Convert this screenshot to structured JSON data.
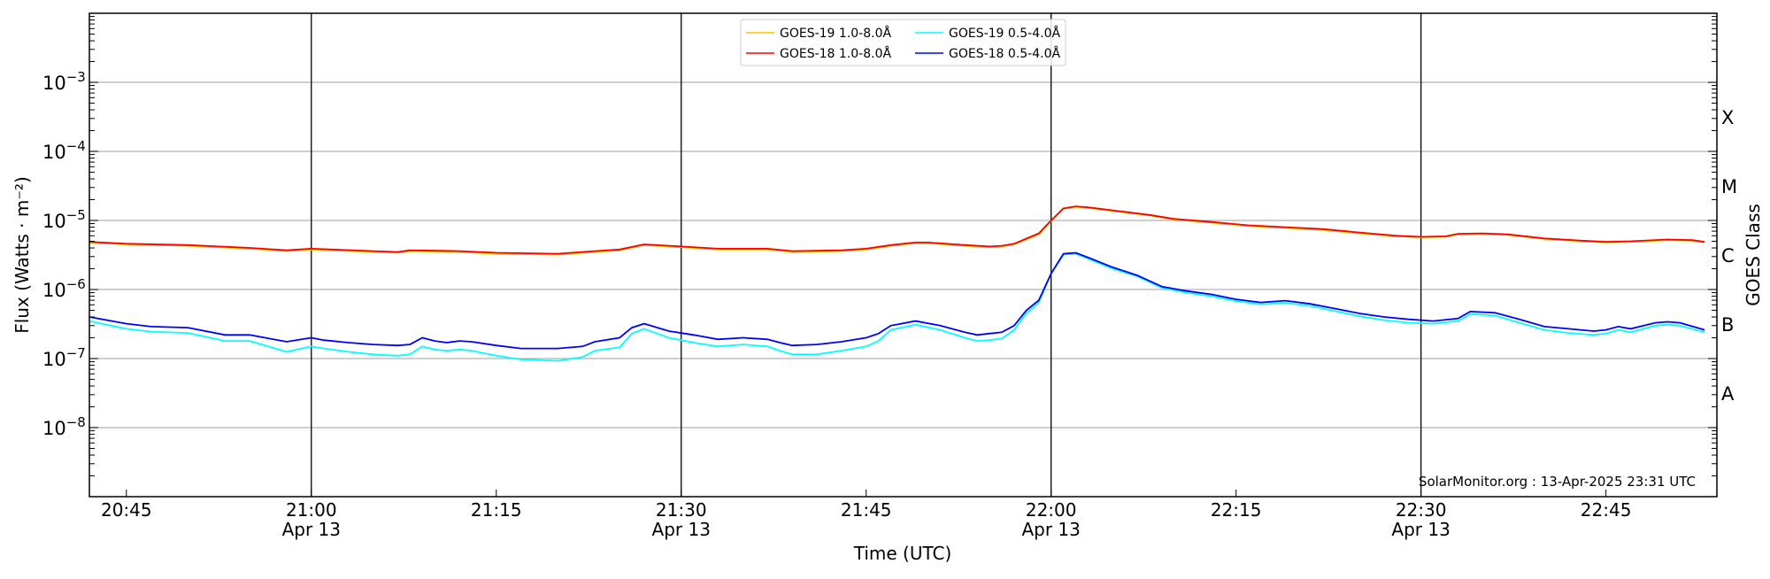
{
  "chart_data": {
    "type": "line",
    "xlabel": "Time (UTC)",
    "ylabel": "Flux (Watts · m⁻²)",
    "y2label": "GOES Class",
    "yscale": "log",
    "ylim": [
      1e-09,
      0.01
    ],
    "xlim": [
      "20:42",
      "22:54"
    ],
    "grid": "horizontal at decades",
    "legend_position": "top-center",
    "x_ticks": [
      {
        "t": "20:45",
        "label": "20:45",
        "sub": ""
      },
      {
        "t": "21:00",
        "label": "21:00",
        "sub": "Apr 13"
      },
      {
        "t": "21:15",
        "label": "21:15",
        "sub": ""
      },
      {
        "t": "21:30",
        "label": "21:30",
        "sub": "Apr 13"
      },
      {
        "t": "21:45",
        "label": "21:45",
        "sub": ""
      },
      {
        "t": "22:00",
        "label": "22:00",
        "sub": "Apr 13"
      },
      {
        "t": "22:15",
        "label": "22:15",
        "sub": ""
      },
      {
        "t": "22:30",
        "label": "22:30",
        "sub": "Apr 13"
      },
      {
        "t": "22:45",
        "label": "22:45",
        "sub": ""
      }
    ],
    "vertical_lines": [
      "21:00",
      "21:30",
      "22:00",
      "22:30"
    ],
    "y_ticks": [
      {
        "exp": -8,
        "label": "10",
        "sup": "−8"
      },
      {
        "exp": -7,
        "label": "10",
        "sup": "−7"
      },
      {
        "exp": -6,
        "label": "10",
        "sup": "−6"
      },
      {
        "exp": -5,
        "label": "10",
        "sup": "−5"
      },
      {
        "exp": -4,
        "label": "10",
        "sup": "−4"
      },
      {
        "exp": -3,
        "label": "10",
        "sup": "−3"
      }
    ],
    "goes_classes": [
      {
        "label": "A",
        "exp": -7.5
      },
      {
        "label": "B",
        "exp": -6.5
      },
      {
        "label": "C",
        "exp": -5.5
      },
      {
        "label": "M",
        "exp": -4.5
      },
      {
        "label": "X",
        "exp": -3.5
      }
    ],
    "annotation": "SolarMonitor.org : 13-Apr-2025 23:31 UTC",
    "series": [
      {
        "name": "GOES-19 1.0-8.0Å",
        "color": "#ffc000",
        "t": [
          "20:42",
          "20:45",
          "20:50",
          "20:55",
          "20:58",
          "21:00",
          "21:05",
          "21:07",
          "21:08",
          "21:12",
          "21:15",
          "21:20",
          "21:23",
          "21:25",
          "21:27",
          "21:30",
          "21:33",
          "21:37",
          "21:39",
          "21:43",
          "21:45",
          "21:47",
          "21:49",
          "21:50",
          "21:53",
          "21:55",
          "21:56",
          "21:57",
          "21:59",
          "22:00",
          "22:01",
          "22:02",
          "22:03",
          "22:05",
          "22:08",
          "22:10",
          "22:13",
          "22:16",
          "22:19",
          "22:22",
          "22:25",
          "22:28",
          "22:30",
          "22:32",
          "22:33",
          "22:35",
          "22:37",
          "22:40",
          "22:43",
          "22:45",
          "22:47",
          "22:50",
          "22:52",
          "22:53"
        ],
        "values": [
          4.8e-06,
          4.5e-06,
          4.3e-06,
          3.9e-06,
          3.6e-06,
          3.8e-06,
          3.5e-06,
          3.4e-06,
          3.6e-06,
          3.5e-06,
          3.3e-06,
          3.2e-06,
          3.5e-06,
          3.7e-06,
          4.4e-06,
          4.1e-06,
          3.8e-06,
          3.8e-06,
          3.5e-06,
          3.6e-06,
          3.8e-06,
          4.3e-06,
          4.7e-06,
          4.7e-06,
          4.3e-06,
          4.1e-06,
          4.2e-06,
          4.5e-06,
          6.3e-06,
          9.8e-06,
          1.47e-05,
          1.57e-05,
          1.52e-05,
          1.37e-05,
          1.18e-05,
          1.03e-05,
          9.3e-06,
          8.3e-06,
          7.8e-06,
          7.3e-06,
          6.5e-06,
          5.9e-06,
          5.7e-06,
          5.8e-06,
          6.3e-06,
          6.4e-06,
          6.2e-06,
          5.4e-06,
          5e-06,
          4.8e-06,
          4.9e-06,
          5.2e-06,
          5.1e-06,
          4.8e-06
        ]
      },
      {
        "name": "GOES-18 1.0-8.0Å",
        "color": "#ff0000",
        "t": [
          "20:42",
          "20:45",
          "20:50",
          "20:55",
          "20:58",
          "21:00",
          "21:05",
          "21:07",
          "21:08",
          "21:12",
          "21:15",
          "21:20",
          "21:23",
          "21:25",
          "21:27",
          "21:30",
          "21:33",
          "21:37",
          "21:39",
          "21:43",
          "21:45",
          "21:47",
          "21:49",
          "21:50",
          "21:53",
          "21:55",
          "21:56",
          "21:57",
          "21:59",
          "22:00",
          "22:01",
          "22:02",
          "22:03",
          "22:05",
          "22:08",
          "22:10",
          "22:13",
          "22:16",
          "22:19",
          "22:22",
          "22:25",
          "22:28",
          "22:30",
          "22:32",
          "22:33",
          "22:35",
          "22:37",
          "22:40",
          "22:43",
          "22:45",
          "22:47",
          "22:50",
          "22:52",
          "22:53"
        ],
        "values": [
          4.9e-06,
          4.6e-06,
          4.4e-06,
          4e-06,
          3.7e-06,
          3.9e-06,
          3.6e-06,
          3.5e-06,
          3.7e-06,
          3.6e-06,
          3.4e-06,
          3.3e-06,
          3.6e-06,
          3.8e-06,
          4.5e-06,
          4.2e-06,
          3.9e-06,
          3.9e-06,
          3.6e-06,
          3.7e-06,
          3.9e-06,
          4.4e-06,
          4.8e-06,
          4.8e-06,
          4.4e-06,
          4.2e-06,
          4.3e-06,
          4.6e-06,
          6.5e-06,
          1e-05,
          1.5e-05,
          1.6e-05,
          1.55e-05,
          1.4e-05,
          1.2e-05,
          1.05e-05,
          9.5e-06,
          8.5e-06,
          8e-06,
          7.5e-06,
          6.7e-06,
          6e-06,
          5.8e-06,
          5.9e-06,
          6.4e-06,
          6.5e-06,
          6.3e-06,
          5.5e-06,
          5.1e-06,
          4.9e-06,
          5e-06,
          5.3e-06,
          5.2e-06,
          4.9e-06
        ]
      },
      {
        "name": "GOES-19 0.5-4.0Å",
        "color": "#00ffff",
        "t": [
          "20:42",
          "20:45",
          "20:47",
          "20:50",
          "20:53",
          "20:55",
          "20:58",
          "21:00",
          "21:01",
          "21:03",
          "21:05",
          "21:07",
          "21:08",
          "21:09",
          "21:10",
          "21:11",
          "21:12",
          "21:13",
          "21:15",
          "21:17",
          "21:20",
          "21:22",
          "21:23",
          "21:25",
          "21:26",
          "21:27",
          "21:29",
          "21:31",
          "21:33",
          "21:35",
          "21:37",
          "21:38",
          "21:39",
          "21:41",
          "21:43",
          "21:45",
          "21:46",
          "21:47",
          "21:49",
          "21:51",
          "21:53",
          "21:54",
          "21:55",
          "21:56",
          "21:57",
          "21:58",
          "21:59",
          "22:00",
          "22:01",
          "22:02",
          "22:03",
          "22:05",
          "22:07",
          "22:09",
          "22:11",
          "22:13",
          "22:15",
          "22:17",
          "22:19",
          "22:21",
          "22:23",
          "22:25",
          "22:27",
          "22:29",
          "22:31",
          "22:33",
          "22:34",
          "22:36",
          "22:38",
          "22:40",
          "22:42",
          "22:44",
          "22:45",
          "22:46",
          "22:47",
          "22:49",
          "22:50",
          "22:51",
          "22:53"
        ],
        "values": [
          3.5e-07,
          2.7e-07,
          2.45e-07,
          2.35e-07,
          1.8e-07,
          1.8e-07,
          1.25e-07,
          1.5e-07,
          1.4e-07,
          1.25e-07,
          1.15e-07,
          1.1e-07,
          1.15e-07,
          1.5e-07,
          1.35e-07,
          1.3e-07,
          1.35e-07,
          1.3e-07,
          1.1e-07,
          9.7e-08,
          9.3e-08,
          1.05e-07,
          1.3e-07,
          1.45e-07,
          2.3e-07,
          2.7e-07,
          2e-07,
          1.7e-07,
          1.5e-07,
          1.6e-07,
          1.5e-07,
          1.3e-07,
          1.15e-07,
          1.15e-07,
          1.3e-07,
          1.5e-07,
          1.8e-07,
          2.6e-07,
          3.1e-07,
          2.6e-07,
          2e-07,
          1.8e-07,
          1.85e-07,
          1.95e-07,
          2.6e-07,
          4.5e-07,
          6.5e-07,
          1.7e-06,
          3.2e-06,
          3.3e-06,
          2.8e-06,
          2e-06,
          1.55e-06,
          1.05e-06,
          9e-07,
          8e-07,
          6.8e-07,
          6.1e-07,
          6.4e-07,
          5.8e-07,
          4.9e-07,
          4.1e-07,
          3.6e-07,
          3.3e-07,
          3.2e-07,
          3.5e-07,
          4.4e-07,
          4.2e-07,
          3.3e-07,
          2.6e-07,
          2.35e-07,
          2.2e-07,
          2.3e-07,
          2.6e-07,
          2.4e-07,
          3e-07,
          3.1e-07,
          3e-07,
          2.4e-07
        ]
      },
      {
        "name": "GOES-18 0.5-4.0Å",
        "color": "#0000ff",
        "t": [
          "20:42",
          "20:45",
          "20:47",
          "20:50",
          "20:53",
          "20:55",
          "20:58",
          "21:00",
          "21:01",
          "21:03",
          "21:05",
          "21:07",
          "21:08",
          "21:09",
          "21:10",
          "21:11",
          "21:12",
          "21:13",
          "21:15",
          "21:17",
          "21:20",
          "21:22",
          "21:23",
          "21:25",
          "21:26",
          "21:27",
          "21:29",
          "21:31",
          "21:33",
          "21:35",
          "21:37",
          "21:38",
          "21:39",
          "21:41",
          "21:43",
          "21:45",
          "21:46",
          "21:47",
          "21:49",
          "21:51",
          "21:53",
          "21:54",
          "21:55",
          "21:56",
          "21:57",
          "21:58",
          "21:59",
          "22:00",
          "22:01",
          "22:02",
          "22:03",
          "22:05",
          "22:07",
          "22:09",
          "22:11",
          "22:13",
          "22:15",
          "22:17",
          "22:19",
          "22:21",
          "22:23",
          "22:25",
          "22:27",
          "22:29",
          "22:31",
          "22:33",
          "22:34",
          "22:36",
          "22:38",
          "22:40",
          "22:42",
          "22:44",
          "22:45",
          "22:46",
          "22:47",
          "22:49",
          "22:50",
          "22:51",
          "22:53"
        ],
        "values": [
          4e-07,
          3.2e-07,
          2.9e-07,
          2.8e-07,
          2.2e-07,
          2.2e-07,
          1.75e-07,
          2e-07,
          1.85e-07,
          1.7e-07,
          1.6e-07,
          1.55e-07,
          1.6e-07,
          2e-07,
          1.8e-07,
          1.7e-07,
          1.8e-07,
          1.75e-07,
          1.55e-07,
          1.4e-07,
          1.4e-07,
          1.5e-07,
          1.75e-07,
          2e-07,
          2.8e-07,
          3.2e-07,
          2.5e-07,
          2.2e-07,
          1.9e-07,
          2e-07,
          1.9e-07,
          1.7e-07,
          1.55e-07,
          1.6e-07,
          1.75e-07,
          2e-07,
          2.3e-07,
          3e-07,
          3.5e-07,
          3e-07,
          2.4e-07,
          2.2e-07,
          2.3e-07,
          2.4e-07,
          3e-07,
          5e-07,
          7e-07,
          1.7e-06,
          3.3e-06,
          3.4e-06,
          2.9e-06,
          2.1e-06,
          1.6e-06,
          1.1e-06,
          9.5e-07,
          8.5e-07,
          7.2e-07,
          6.5e-07,
          6.9e-07,
          6.2e-07,
          5.3e-07,
          4.5e-07,
          4e-07,
          3.7e-07,
          3.5e-07,
          3.8e-07,
          4.8e-07,
          4.6e-07,
          3.7e-07,
          2.9e-07,
          2.7e-07,
          2.5e-07,
          2.6e-07,
          2.9e-07,
          2.7e-07,
          3.3e-07,
          3.4e-07,
          3.3e-07,
          2.6e-07
        ]
      }
    ]
  }
}
